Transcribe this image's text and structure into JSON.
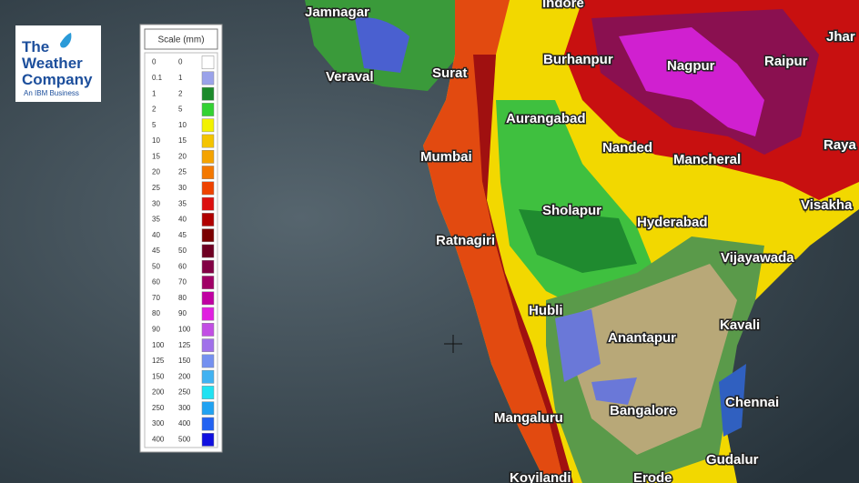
{
  "logo": {
    "lines": [
      "The",
      "Weather",
      "Company"
    ],
    "tagline": "An IBM Business"
  },
  "legend": {
    "title": "Scale (mm)",
    "rows": [
      {
        "min": 0,
        "max": 0,
        "color": "#ffffff"
      },
      {
        "min": 0.1,
        "max": 1,
        "color": "#9aa2ea"
      },
      {
        "min": 1,
        "max": 2,
        "color": "#1b8a2b"
      },
      {
        "min": 2,
        "max": 5,
        "color": "#33d233"
      },
      {
        "min": 5,
        "max": 10,
        "color": "#f2f200"
      },
      {
        "min": 10,
        "max": 15,
        "color": "#f4c400"
      },
      {
        "min": 15,
        "max": 20,
        "color": "#f5a300"
      },
      {
        "min": 20,
        "max": 25,
        "color": "#f47800"
      },
      {
        "min": 25,
        "max": 30,
        "color": "#ee4200"
      },
      {
        "min": 30,
        "max": 35,
        "color": "#dc1010"
      },
      {
        "min": 35,
        "max": 40,
        "color": "#b00000"
      },
      {
        "min": 40,
        "max": 45,
        "color": "#7a0000"
      },
      {
        "min": 45,
        "max": 50,
        "color": "#6e0022"
      },
      {
        "min": 50,
        "max": 60,
        "color": "#820044"
      },
      {
        "min": 60,
        "max": 70,
        "color": "#a00066"
      },
      {
        "min": 70,
        "max": 80,
        "color": "#c000a2"
      },
      {
        "min": 80,
        "max": 90,
        "color": "#e020e0"
      },
      {
        "min": 90,
        "max": 100,
        "color": "#c24ee4"
      },
      {
        "min": 100,
        "max": 125,
        "color": "#a070ea"
      },
      {
        "min": 125,
        "max": 150,
        "color": "#7490f0"
      },
      {
        "min": 150,
        "max": 200,
        "color": "#40b2f2"
      },
      {
        "min": 200,
        "max": 250,
        "color": "#20e2f2"
      },
      {
        "min": 250,
        "max": 300,
        "color": "#20a2f2"
      },
      {
        "min": 300,
        "max": 400,
        "color": "#2262f2"
      },
      {
        "min": 400,
        "max": 500,
        "color": "#1010e0"
      }
    ]
  },
  "cities": [
    "Jamnagar",
    "Indore",
    "Jhar",
    "Veraval",
    "Surat",
    "Burhanpur",
    "Nagpur",
    "Raipur",
    "Aurangabad",
    "Nanded",
    "Raya",
    "Mumbai",
    "Mancheral",
    "Sholapur",
    "Visakha",
    "Hyderabad",
    "Ratnagiri",
    "Vijayawada",
    "Hubli",
    "Kavali",
    "Anantapur",
    "Chennai",
    "Mangaluru",
    "Bangalore",
    "Gudalur",
    "Koyilandi",
    "Erode"
  ]
}
